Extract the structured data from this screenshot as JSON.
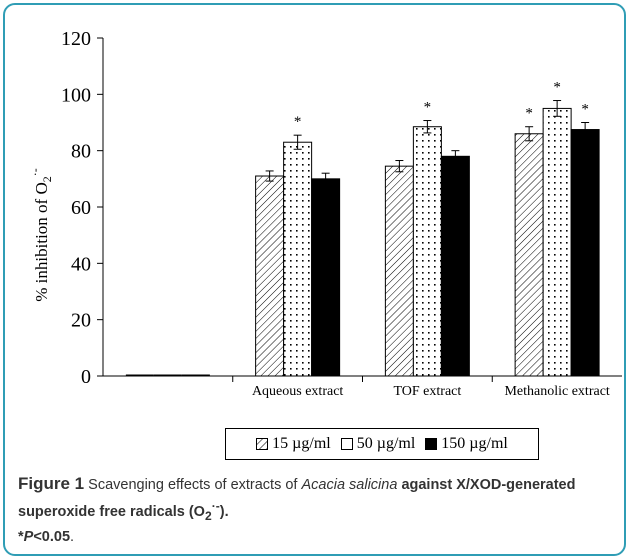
{
  "chart_data": {
    "type": "bar",
    "title": "",
    "xlabel": "",
    "ylabel": "% inhibition of O",
    "ylabel_sub": "2",
    "ylabel_sup": "·-",
    "ylim": [
      0,
      120
    ],
    "yticks": [
      "0",
      "20",
      "40",
      "60",
      "80",
      "100",
      "120"
    ],
    "categories": [
      "",
      "Aqueous extract",
      "TOF extract",
      "Methanolic extract"
    ],
    "series": [
      {
        "name": "15 µg/ml",
        "values": [
          0,
          71,
          74.5,
          86
        ],
        "errors": [
          0,
          1.8,
          2,
          2.5
        ],
        "significant": [
          false,
          false,
          false,
          true
        ],
        "fill": "hatch"
      },
      {
        "name": "50 µg/ml",
        "values": [
          0,
          83,
          88.5,
          95
        ],
        "errors": [
          0,
          2.5,
          2.2,
          2.8
        ],
        "significant": [
          false,
          true,
          true,
          true
        ],
        "fill": "dotted"
      },
      {
        "name": "150 µg/ml",
        "values": [
          0,
          70,
          78,
          87.5
        ],
        "errors": [
          0,
          2,
          2,
          2.5
        ],
        "significant": [
          false,
          false,
          false,
          true
        ],
        "fill": "#000000"
      }
    ],
    "significance_marker": "*",
    "grid": false,
    "legend_position": "bottom"
  },
  "caption": {
    "lead": "Figure 1",
    "text1": "Scavenging effects of extracts of",
    "species": "Acacia salicina",
    "text2": "against X/XOD-generated superoxide free radicals (O",
    "sub": "2",
    "sup": "·-",
    "text3": ").",
    "star": "*",
    "p_italic": "P",
    "p_rest": "<0.05",
    "end": "."
  },
  "colors": {
    "frame_border": "#2f9db5",
    "caption_text": "#333333"
  }
}
